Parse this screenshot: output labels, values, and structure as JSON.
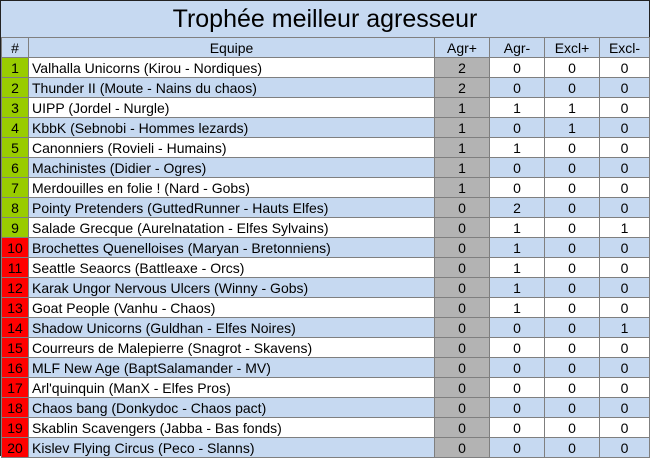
{
  "title": "Trophée meilleur agresseur",
  "headers": {
    "rank": "#",
    "team": "Equipe",
    "agr_plus": "Agr+",
    "agr_minus": "Agr-",
    "excl_plus": "Excl+",
    "excl_minus": "Excl-"
  },
  "colors": {
    "green": "#99cc00",
    "red": "#ff0000",
    "header_bg": "#c6d9f1",
    "agr_plus_bg": "#b3b3b3"
  },
  "rows": [
    {
      "rank": "1",
      "team": "Valhalla Unicorns (Kirou - Nordiques)",
      "agr_plus": "2",
      "agr_minus": "0",
      "excl_plus": "0",
      "excl_minus": "0",
      "zone": "green"
    },
    {
      "rank": "2",
      "team": "Thunder II (Moute - Nains du chaos)",
      "agr_plus": "2",
      "agr_minus": "0",
      "excl_plus": "0",
      "excl_minus": "0",
      "zone": "green"
    },
    {
      "rank": "3",
      "team": "UIPP (Jordel - Nurgle)",
      "agr_plus": "1",
      "agr_minus": "1",
      "excl_plus": "1",
      "excl_minus": "0",
      "zone": "green"
    },
    {
      "rank": "4",
      "team": "KbbK (Sebnobi - Hommes lezards)",
      "agr_plus": "1",
      "agr_minus": "0",
      "excl_plus": "1",
      "excl_minus": "0",
      "zone": "green"
    },
    {
      "rank": "5",
      "team": "Canonniers (Rovieli - Humains)",
      "agr_plus": "1",
      "agr_minus": "1",
      "excl_plus": "0",
      "excl_minus": "0",
      "zone": "green"
    },
    {
      "rank": "6",
      "team": "Machinistes (Didier - Ogres)",
      "agr_plus": "1",
      "agr_minus": "0",
      "excl_plus": "0",
      "excl_minus": "0",
      "zone": "green"
    },
    {
      "rank": "7",
      "team": "Merdouilles en folie ! (Nard - Gobs)",
      "agr_plus": "1",
      "agr_minus": "0",
      "excl_plus": "0",
      "excl_minus": "0",
      "zone": "green"
    },
    {
      "rank": "8",
      "team": "Pointy Pretenders (GuttedRunner - Hauts Elfes)",
      "agr_plus": "0",
      "agr_minus": "2",
      "excl_plus": "0",
      "excl_minus": "0",
      "zone": "green"
    },
    {
      "rank": "9",
      "team": "Salade Grecque (Aurelnatation - Elfes Sylvains)",
      "agr_plus": "0",
      "agr_minus": "1",
      "excl_plus": "0",
      "excl_minus": "1",
      "zone": "green"
    },
    {
      "rank": "10",
      "team": "Brochettes Quenelloises (Maryan - Bretonniens)",
      "agr_plus": "0",
      "agr_minus": "1",
      "excl_plus": "0",
      "excl_minus": "0",
      "zone": "red"
    },
    {
      "rank": "11",
      "team": "Seattle Seaorcs (Battleaxe - Orcs)",
      "agr_plus": "0",
      "agr_minus": "1",
      "excl_plus": "0",
      "excl_minus": "0",
      "zone": "red"
    },
    {
      "rank": "12",
      "team": "Karak Ungor Nervous Ulcers (Winny - Gobs)",
      "agr_plus": "0",
      "agr_minus": "1",
      "excl_plus": "0",
      "excl_minus": "0",
      "zone": "red"
    },
    {
      "rank": "13",
      "team": "Goat People (Vanhu - Chaos)",
      "agr_plus": "0",
      "agr_minus": "1",
      "excl_plus": "0",
      "excl_minus": "0",
      "zone": "red"
    },
    {
      "rank": "14",
      "team": "Shadow Unicorns (Guldhan - Elfes Noires)",
      "agr_plus": "0",
      "agr_minus": "0",
      "excl_plus": "0",
      "excl_minus": "1",
      "zone": "red"
    },
    {
      "rank": "15",
      "team": "Courreurs de Malepierre (Snagrot - Skavens)",
      "agr_plus": "0",
      "agr_minus": "0",
      "excl_plus": "0",
      "excl_minus": "0",
      "zone": "red"
    },
    {
      "rank": "16",
      "team": "MLF New Age (BaptSalamander - MV)",
      "agr_plus": "0",
      "agr_minus": "0",
      "excl_plus": "0",
      "excl_minus": "0",
      "zone": "red"
    },
    {
      "rank": "17",
      "team": "Arl'quinquin (ManX - Elfes Pros)",
      "agr_plus": "0",
      "agr_minus": "0",
      "excl_plus": "0",
      "excl_minus": "0",
      "zone": "red"
    },
    {
      "rank": "18",
      "team": "Chaos bang (Donkydoc - Chaos pact)",
      "agr_plus": "0",
      "agr_minus": "0",
      "excl_plus": "0",
      "excl_minus": "0",
      "zone": "red"
    },
    {
      "rank": "19",
      "team": "Skablin Scavengers (Jabba - Bas fonds)",
      "agr_plus": "0",
      "agr_minus": "0",
      "excl_plus": "0",
      "excl_minus": "0",
      "zone": "red"
    },
    {
      "rank": "20",
      "team": "Kislev Flying Circus (Peco - Slanns)",
      "agr_plus": "0",
      "agr_minus": "0",
      "excl_plus": "0",
      "excl_minus": "0",
      "zone": "red"
    }
  ]
}
